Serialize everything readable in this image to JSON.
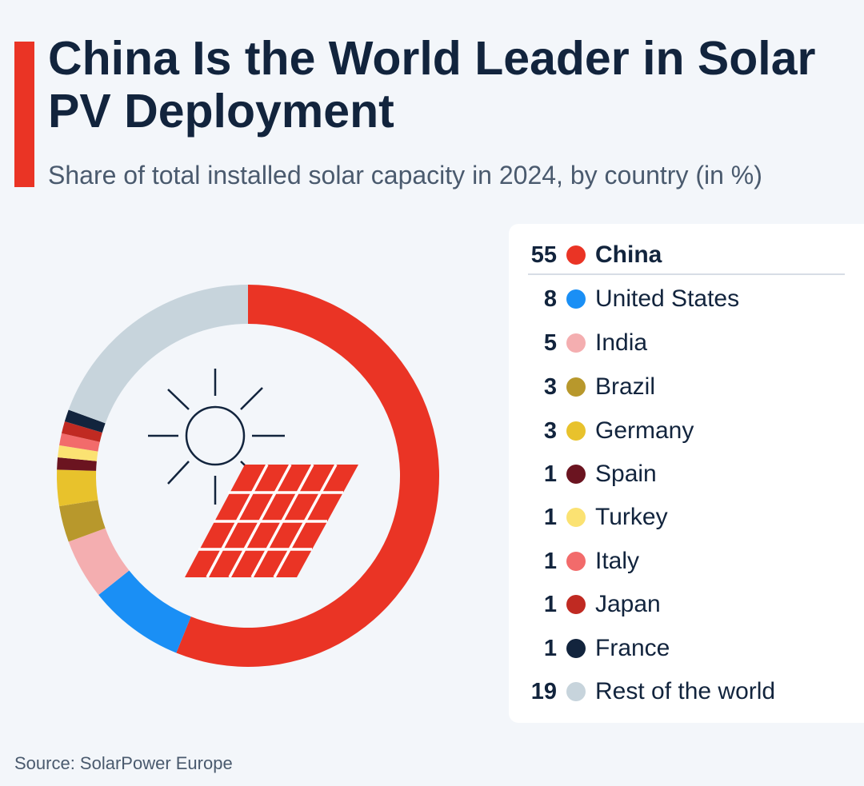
{
  "header": {
    "title": "China Is the World Leader in Solar PV Deployment",
    "subtitle": "Share of total installed solar capacity in 2024, by country (in %)"
  },
  "source": "Source: SolarPower Europe",
  "icon": "solar-panel-sun-icon",
  "colors": {
    "accent": "#ea3425",
    "text": "#12243d"
  },
  "chart_data": {
    "type": "pie",
    "donut": true,
    "title": "China Is the World Leader in Solar PV Deployment",
    "subtitle": "Share of total installed solar capacity in 2024, by country (in %)",
    "legend_position": "right",
    "start": "top, clockwise",
    "slices": [
      {
        "label": "China",
        "value": 55,
        "color": "#ea3425"
      },
      {
        "label": "United States",
        "value": 8,
        "color": "#1a8ff5"
      },
      {
        "label": "India",
        "value": 5,
        "color": "#f4aeb0"
      },
      {
        "label": "Brazil",
        "value": 3,
        "color": "#b8982c"
      },
      {
        "label": "Germany",
        "value": 3,
        "color": "#e8c22c"
      },
      {
        "label": "Spain",
        "value": 1,
        "color": "#6b1420"
      },
      {
        "label": "Turkey",
        "value": 1,
        "color": "#fbe272"
      },
      {
        "label": "Italy",
        "value": 1,
        "color": "#f26b6b"
      },
      {
        "label": "Japan",
        "value": 1,
        "color": "#c02a22"
      },
      {
        "label": "France",
        "value": 1,
        "color": "#12243d"
      },
      {
        "label": "Rest of the world",
        "value": 19,
        "color": "#c7d4dc"
      }
    ]
  }
}
